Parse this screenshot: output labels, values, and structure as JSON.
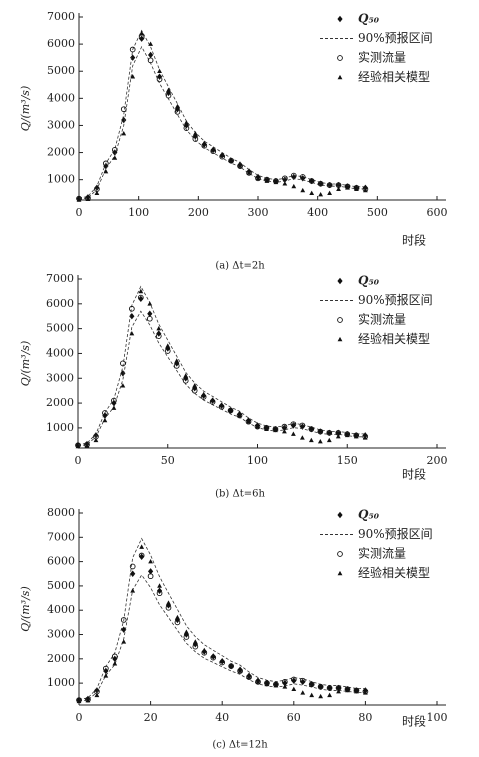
{
  "chart_data": [
    {
      "type": "line",
      "caption": "(a) Δt=2h",
      "xlabel": "时段",
      "ylabel": "Q/(m³/s)",
      "x": [
        0,
        15,
        30,
        45,
        60,
        75,
        90,
        105,
        120,
        135,
        150,
        165,
        180,
        195,
        210,
        225,
        240,
        255,
        270,
        285,
        300,
        315,
        330,
        345,
        360,
        375,
        390,
        405,
        420,
        435,
        450,
        465,
        480
      ],
      "xlim": [
        0,
        600
      ],
      "xticks": [
        0,
        100,
        200,
        300,
        400,
        500,
        600
      ],
      "ylim": [
        250,
        7000
      ],
      "yticks": [
        1000,
        2000,
        3000,
        4000,
        5000,
        6000,
        7000
      ],
      "series": [
        {
          "name": "Q₅₀",
          "color": "#222",
          "marker": "diamond",
          "values": [
            300,
            350,
            700,
            1500,
            2000,
            3200,
            5500,
            6200,
            5600,
            4800,
            4200,
            3600,
            3000,
            2600,
            2300,
            2100,
            1900,
            1700,
            1550,
            1300,
            1100,
            1000,
            950,
            1000,
            1100,
            1050,
            950,
            850,
            800,
            800,
            750,
            700,
            700
          ]
        },
        {
          "name": "90%预报区间",
          "color": "#333",
          "marker": "band",
          "lower": [
            280,
            320,
            640,
            1400,
            1880,
            3000,
            5200,
            5900,
            5300,
            4550,
            3980,
            3400,
            2840,
            2460,
            2180,
            1990,
            1800,
            1610,
            1470,
            1230,
            1040,
            950,
            900,
            950,
            1040,
            990,
            900,
            800,
            760,
            760,
            710,
            660,
            660
          ],
          "upper": [
            320,
            380,
            760,
            1600,
            2120,
            3400,
            5800,
            6500,
            5900,
            5050,
            4420,
            3800,
            3160,
            2740,
            2420,
            2210,
            2000,
            1790,
            1630,
            1370,
            1160,
            1050,
            1000,
            1050,
            1160,
            1110,
            1000,
            900,
            840,
            840,
            790,
            740,
            740
          ]
        },
        {
          "name": "实测流量",
          "color": "#222",
          "marker": "circle",
          "values": [
            300,
            320,
            650,
            1600,
            2100,
            3600,
            5800,
            6250,
            5400,
            4700,
            4100,
            3500,
            2900,
            2500,
            2250,
            2050,
            1850,
            1700,
            1500,
            1250,
            1050,
            1000,
            950,
            1050,
            1150,
            1100,
            950,
            850,
            800,
            800,
            750,
            700,
            650
          ]
        },
        {
          "name": "经验相关模型",
          "color": "#222",
          "marker": "triangle",
          "values": [
            250,
            280,
            500,
            1300,
            1800,
            2700,
            4800,
            6400,
            6000,
            5000,
            4300,
            3700,
            3100,
            2700,
            2350,
            2100,
            1900,
            1700,
            1500,
            1250,
            1050,
            950,
            900,
            850,
            750,
            600,
            500,
            450,
            500,
            650,
            700,
            650,
            600
          ]
        }
      ]
    },
    {
      "type": "line",
      "caption": "(b) Δt=6h",
      "xlabel": "时段",
      "ylabel": "Q/(m³/s)",
      "x": [
        0,
        5,
        10,
        15,
        20,
        25,
        30,
        35,
        40,
        45,
        50,
        55,
        60,
        65,
        70,
        75,
        80,
        85,
        90,
        95,
        100,
        105,
        110,
        115,
        120,
        125,
        130,
        135,
        140,
        145,
        150,
        155,
        160
      ],
      "xlim": [
        0,
        200
      ],
      "xticks": [
        0,
        50,
        100,
        150,
        200
      ],
      "ylim": [
        190,
        7000
      ],
      "yticks": [
        1000,
        2000,
        3000,
        4000,
        5000,
        6000,
        7000
      ],
      "series": [
        {
          "name": "Q₅₀",
          "color": "#222",
          "marker": "diamond",
          "values": [
            300,
            350,
            700,
            1500,
            2000,
            3200,
            5500,
            6200,
            5600,
            4800,
            4200,
            3600,
            3000,
            2600,
            2300,
            2100,
            1900,
            1700,
            1550,
            1300,
            1100,
            1000,
            950,
            1000,
            1100,
            1050,
            950,
            850,
            800,
            800,
            750,
            700,
            700
          ]
        },
        {
          "name": "90%预报区间",
          "color": "#333",
          "marker": "band",
          "lower": [
            275,
            320,
            640,
            1380,
            1840,
            2940,
            5060,
            5700,
            5150,
            4420,
            3860,
            3310,
            2760,
            2390,
            2120,
            1930,
            1750,
            1560,
            1430,
            1200,
            1010,
            920,
            870,
            920,
            1010,
            970,
            870,
            780,
            740,
            740,
            690,
            640,
            640
          ],
          "upper": [
            325,
            380,
            760,
            1620,
            2160,
            3460,
            5940,
            6700,
            6050,
            5180,
            4540,
            3890,
            3240,
            2810,
            2480,
            2270,
            2050,
            1840,
            1670,
            1400,
            1190,
            1080,
            1030,
            1080,
            1190,
            1130,
            1030,
            920,
            860,
            860,
            810,
            760,
            760
          ]
        },
        {
          "name": "实测流量",
          "color": "#222",
          "marker": "circle",
          "values": [
            300,
            320,
            650,
            1600,
            2100,
            3600,
            5800,
            6250,
            5400,
            4700,
            4100,
            3500,
            2900,
            2500,
            2250,
            2050,
            1850,
            1700,
            1500,
            1250,
            1050,
            1000,
            950,
            1050,
            1150,
            1100,
            950,
            850,
            800,
            800,
            750,
            700,
            650
          ]
        },
        {
          "name": "经验相关模型",
          "color": "#222",
          "marker": "triangle",
          "values": [
            250,
            280,
            500,
            1300,
            1800,
            2700,
            4800,
            6500,
            6000,
            5000,
            4300,
            3700,
            3100,
            2700,
            2350,
            2100,
            1900,
            1700,
            1500,
            1250,
            1050,
            950,
            900,
            850,
            750,
            600,
            500,
            450,
            500,
            650,
            700,
            650,
            600
          ]
        }
      ]
    },
    {
      "type": "line",
      "caption": "(c) Δt=12h",
      "xlabel": "时段",
      "ylabel": "Q/(m³/s)",
      "x": [
        0,
        2.5,
        5,
        7.5,
        10,
        12.5,
        15,
        17.5,
        20,
        22.5,
        25,
        27.5,
        30,
        32.5,
        35,
        37.5,
        40,
        42.5,
        45,
        47.5,
        50,
        52.5,
        55,
        57.5,
        60,
        62.5,
        65,
        67.5,
        70,
        72.5,
        75,
        77.5,
        80
      ],
      "xlim": [
        0,
        100
      ],
      "xticks": [
        0,
        20,
        40,
        60,
        80,
        100
      ],
      "ylim": [
        100,
        8000
      ],
      "yticks": [
        1000,
        2000,
        3000,
        4000,
        5000,
        6000,
        7000,
        8000
      ],
      "series": [
        {
          "name": "Q₅₀",
          "color": "#222",
          "marker": "diamond",
          "values": [
            300,
            350,
            700,
            1500,
            2000,
            3200,
            5500,
            6200,
            5600,
            4800,
            4200,
            3600,
            3000,
            2600,
            2300,
            2100,
            1900,
            1700,
            1550,
            1300,
            1100,
            1000,
            950,
            1000,
            1100,
            1050,
            950,
            850,
            800,
            800,
            750,
            700,
            700
          ]
        },
        {
          "name": "90%预报区间",
          "color": "#333",
          "marker": "band",
          "lower": [
            265,
            310,
            620,
            1320,
            1760,
            2820,
            4840,
            5450,
            4930,
            4220,
            3700,
            3170,
            2640,
            2290,
            2020,
            1850,
            1670,
            1500,
            1360,
            1140,
            970,
            880,
            840,
            880,
            970,
            920,
            840,
            750,
            700,
            700,
            660,
            620,
            620
          ],
          "upper": [
            335,
            390,
            780,
            1680,
            2240,
            3580,
            6160,
            6950,
            6270,
            5380,
            4700,
            4030,
            3360,
            2910,
            2580,
            2350,
            2130,
            1900,
            1740,
            1460,
            1230,
            1120,
            1060,
            1120,
            1230,
            1180,
            1060,
            950,
            900,
            900,
            840,
            780,
            780
          ]
        },
        {
          "name": "实测流量",
          "color": "#222",
          "marker": "circle",
          "values": [
            300,
            320,
            650,
            1600,
            2100,
            3600,
            5800,
            6250,
            5400,
            4700,
            4100,
            3500,
            2900,
            2500,
            2250,
            2050,
            1850,
            1700,
            1500,
            1250,
            1050,
            1000,
            950,
            1050,
            1150,
            1100,
            950,
            850,
            800,
            800,
            750,
            700,
            650
          ]
        },
        {
          "name": "经验相关模型",
          "color": "#222",
          "marker": "triangle",
          "values": [
            250,
            280,
            500,
            1300,
            1800,
            2700,
            4800,
            6600,
            6000,
            5000,
            4300,
            3700,
            3100,
            2700,
            2350,
            2100,
            1900,
            1700,
            1500,
            1250,
            1050,
            950,
            900,
            850,
            750,
            600,
            500,
            450,
            500,
            650,
            700,
            650,
            600
          ]
        }
      ]
    }
  ]
}
